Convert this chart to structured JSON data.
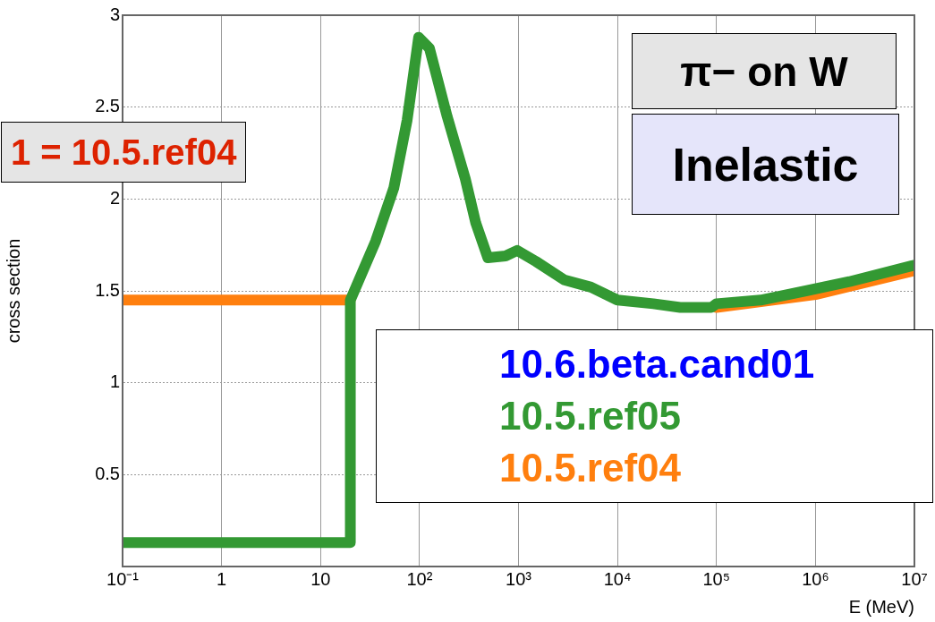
{
  "chart_data": {
    "type": "line",
    "title": "π− on W",
    "subtitle": "Inelastic",
    "xlabel": "E (MeV)",
    "ylabel": "cross section",
    "annotations": [
      "1 = 10.5.ref04"
    ],
    "series": [
      {
        "name": "10.6.beta.cand01",
        "color": "#0000ff"
      },
      {
        "name": "10.5.ref05",
        "color": "#339933",
        "x": [
          0.1,
          20,
          20,
          36,
          55,
          75,
          98,
          126,
          190,
          290,
          370,
          490,
          740,
          970,
          1500,
          2900,
          5400,
          10000,
          23000,
          43000,
          89000,
          100000,
          280000,
          800000,
          2200000,
          10000000
        ],
        "values": [
          0.13,
          0.13,
          1.45,
          1.77,
          2.06,
          2.43,
          2.88,
          2.82,
          2.45,
          2.11,
          1.87,
          1.68,
          1.69,
          1.72,
          1.66,
          1.56,
          1.52,
          1.45,
          1.43,
          1.41,
          1.41,
          1.43,
          1.45,
          1.5,
          1.55,
          1.64
        ]
      },
      {
        "name": "10.5.ref04",
        "color": "#ff7f0e",
        "x": [
          0.1,
          20,
          1000,
          100000,
          1000000,
          10000000
        ],
        "values": [
          1.45,
          1.45,
          null,
          1.41,
          1.48,
          1.61
        ]
      }
    ],
    "xlim": [
      0.1,
      10000000
    ],
    "ylim": [
      0,
      3
    ],
    "xticks": [
      {
        "value": 0.1,
        "label": "10⁻¹"
      },
      1,
      10,
      {
        "value": 100,
        "label": "10²"
      },
      {
        "value": 1000,
        "label": "10³"
      },
      {
        "value": 10000,
        "label": "10⁴"
      },
      {
        "value": 100000,
        "label": "10⁵"
      },
      {
        "value": 1000000,
        "label": "10⁶"
      },
      {
        "value": 10000000,
        "label": "10⁷"
      }
    ],
    "yticks": [
      0.5,
      1,
      1.5,
      2,
      2.5,
      3
    ],
    "log": "x",
    "grid": true,
    "legend": "bottom right",
    "line_style": "solid",
    "marker": "none"
  }
}
